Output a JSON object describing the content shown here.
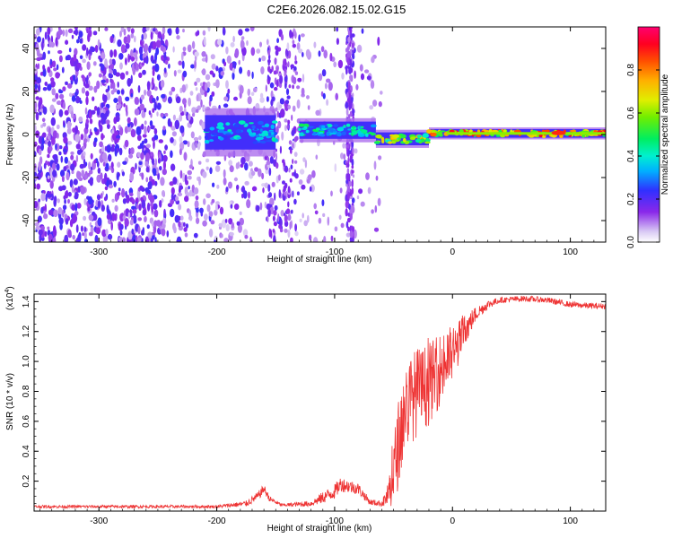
{
  "title": "C2E6.2026.082.15.02.G15",
  "chart_data": [
    {
      "type": "heatmap",
      "xlabel": "Height of straight line (km)",
      "ylabel": "Frequency (Hz)",
      "xlim": [
        -355,
        130
      ],
      "ylim": [
        -50,
        50
      ],
      "x_ticks": [
        -300,
        -200,
        -100,
        0,
        100
      ],
      "y_ticks": [
        -40,
        -20,
        0,
        20,
        40
      ],
      "colorbar": {
        "label": "Normalized spectral amplitude",
        "range": [
          0,
          1
        ],
        "ticks": [
          "0.0",
          "0.2",
          "0.4",
          "0.6",
          "0.8"
        ]
      },
      "band_segments": [
        {
          "x": [
            -210,
            -150
          ],
          "freq_center": 1,
          "freq_halfwidth": 8,
          "amplitude": 0.4
        },
        {
          "x": [
            -130,
            -65
          ],
          "freq_center": 2,
          "freq_halfwidth": 4,
          "amplitude": 0.45
        },
        {
          "x": [
            -65,
            -20
          ],
          "freq_center": -2,
          "freq_halfwidth": 3,
          "amplitude": 0.7
        },
        {
          "x": [
            -20,
            130
          ],
          "freq_center": 0.5,
          "freq_halfwidth": 2,
          "amplitude": 0.85
        }
      ],
      "noise_region": {
        "x": [
          -355,
          -60
        ],
        "density": "high",
        "amplitude_max": 0.25
      }
    },
    {
      "type": "line",
      "xlabel": "Height of straight line (km)",
      "ylabel": "SNR (10 * v/v)",
      "y_multiplier": "(x10",
      "y_multiplier_exp": "4",
      "y_multiplier_close": ")",
      "xlim": [
        -355,
        130
      ],
      "ylim": [
        0,
        1.45
      ],
      "x_ticks": [
        -300,
        -200,
        -100,
        0,
        100
      ],
      "y_ticks": [
        "0.2",
        "0.4",
        "0.6",
        "0.8",
        "1.0",
        "1.2",
        "1.4"
      ],
      "series": [
        {
          "name": "SNR",
          "color": "#ee3333",
          "envelope": {
            "x": [
              -355,
              -300,
              -200,
              -175,
              -165,
              -160,
              -155,
              -145,
              -120,
              -110,
              -100,
              -95,
              -80,
              -70,
              -60,
              -55,
              -50,
              -45,
              -40,
              -35,
              -30,
              -25,
              -20,
              -15,
              -10,
              -5,
              0,
              5,
              10,
              15,
              20,
              30,
              40,
              60,
              80,
              100,
              120,
              130
            ],
            "y": [
              0.03,
              0.03,
              0.03,
              0.05,
              0.1,
              0.15,
              0.08,
              0.04,
              0.05,
              0.09,
              0.13,
              0.18,
              0.15,
              0.06,
              0.05,
              0.1,
              0.25,
              0.5,
              0.7,
              0.75,
              0.8,
              0.82,
              0.85,
              0.9,
              0.95,
              1.0,
              1.05,
              1.12,
              1.2,
              1.26,
              1.32,
              1.38,
              1.41,
              1.42,
              1.41,
              1.38,
              1.37,
              1.37
            ]
          },
          "noise_amplitude": [
            0.01,
            0.01,
            0.01,
            0.02,
            0.03,
            0.03,
            0.02,
            0.01,
            0.02,
            0.04,
            0.05,
            0.05,
            0.04,
            0.02,
            0.02,
            0.08,
            0.25,
            0.3,
            0.3,
            0.3,
            0.3,
            0.28,
            0.28,
            0.25,
            0.25,
            0.22,
            0.2,
            0.15,
            0.12,
            0.08,
            0.05,
            0.03,
            0.02,
            0.02,
            0.02,
            0.02,
            0.02,
            0.02
          ]
        }
      ]
    }
  ]
}
